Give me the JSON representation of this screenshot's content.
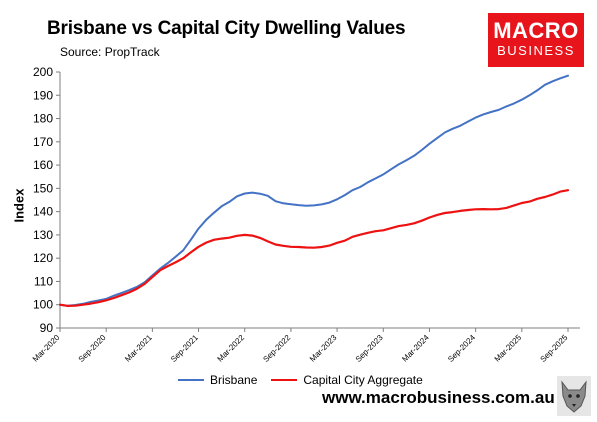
{
  "header": {
    "title": "Brisbane vs Capital City Dwelling Values",
    "source": "Source: PropTrack"
  },
  "logo": {
    "line1": "MACRO",
    "line2": "BUSINESS",
    "color": "#e8141b"
  },
  "footer": {
    "website": "www.macrobusiness.com.au"
  },
  "chart_data": {
    "type": "line",
    "title": "Brisbane vs Capital City Dwelling Values",
    "xlabel": "",
    "ylabel": "Index",
    "ylim": [
      90,
      200
    ],
    "yticks": [
      90,
      100,
      110,
      120,
      130,
      140,
      150,
      160,
      170,
      180,
      190,
      200
    ],
    "xtick_labels": [
      "Mar-2020",
      "Sep-2020",
      "Mar-2021",
      "Sep-2021",
      "Mar-2022",
      "Sep-2022",
      "Mar-2023",
      "Sep-2023",
      "Mar-2024",
      "Sep-2024",
      "Mar-2025",
      "Sep-2025"
    ],
    "x": [
      "Mar-2020",
      "Apr-2020",
      "May-2020",
      "Jun-2020",
      "Jul-2020",
      "Aug-2020",
      "Sep-2020",
      "Oct-2020",
      "Nov-2020",
      "Dec-2020",
      "Jan-2021",
      "Feb-2021",
      "Mar-2021",
      "Apr-2021",
      "May-2021",
      "Jun-2021",
      "Jul-2021",
      "Aug-2021",
      "Sep-2021",
      "Oct-2021",
      "Nov-2021",
      "Dec-2021",
      "Jan-2022",
      "Feb-2022",
      "Mar-2022",
      "Apr-2022",
      "May-2022",
      "Jun-2022",
      "Jul-2022",
      "Aug-2022",
      "Sep-2022",
      "Oct-2022",
      "Nov-2022",
      "Dec-2022",
      "Jan-2023",
      "Feb-2023",
      "Mar-2023",
      "Apr-2023",
      "May-2023",
      "Jun-2023",
      "Jul-2023",
      "Aug-2023",
      "Sep-2023",
      "Oct-2023",
      "Nov-2023",
      "Dec-2023",
      "Jan-2024",
      "Feb-2024",
      "Mar-2024",
      "Apr-2024",
      "May-2024",
      "Jun-2024",
      "Jul-2024",
      "Aug-2024",
      "Sep-2024",
      "Oct-2024",
      "Nov-2024",
      "Dec-2024",
      "Jan-2025",
      "Feb-2025",
      "Mar-2025",
      "Apr-2025",
      "May-2025",
      "Jun-2025",
      "Jul-2025",
      "Aug-2025",
      "Sep-2025"
    ],
    "series": [
      {
        "name": "Brisbane",
        "color": "#4472c4",
        "values": [
          100,
          99.6,
          99.9,
          100.4,
          101.2,
          101.8,
          102.5,
          103.9,
          105.1,
          106.3,
          107.7,
          109.7,
          112.6,
          115.5,
          117.9,
          120.6,
          123.4,
          127.9,
          132.7,
          136.5,
          139.5,
          142.3,
          144.2,
          146.6,
          147.8,
          148.2,
          147.7,
          146.8,
          144.5,
          143.6,
          143.2,
          142.8,
          142.5,
          142.7,
          143.1,
          143.9,
          145.3,
          147.1,
          149.2,
          150.6,
          152.6,
          154.3,
          156.0,
          158.2,
          160.3,
          162.1,
          164.0,
          166.5,
          169.2,
          171.6,
          174.0,
          175.6,
          176.9,
          178.7,
          180.4,
          181.8,
          182.8,
          183.7,
          185.2,
          186.5,
          188.1,
          190.0,
          192.1,
          194.5,
          196.0,
          197.3,
          198.4
        ]
      },
      {
        "name": "Capital City Aggregate",
        "color": "#ee1111",
        "values": [
          100,
          99.5,
          99.6,
          100.0,
          100.5,
          101.1,
          101.9,
          102.9,
          104.1,
          105.3,
          106.9,
          109.0,
          111.9,
          114.8,
          116.6,
          118.2,
          120.0,
          122.5,
          124.9,
          126.7,
          127.9,
          128.4,
          128.8,
          129.6,
          130.0,
          129.7,
          128.7,
          127.2,
          125.9,
          125.3,
          124.9,
          124.8,
          124.6,
          124.5,
          124.8,
          125.4,
          126.6,
          127.5,
          129.2,
          130.1,
          130.9,
          131.6,
          132.0,
          132.9,
          133.8,
          134.3,
          135.0,
          136.1,
          137.5,
          138.6,
          139.4,
          139.8,
          140.3,
          140.7,
          141.0,
          141.1,
          141.0,
          141.1,
          141.6,
          142.7,
          143.7,
          144.3,
          145.5,
          146.3,
          147.3,
          148.6,
          149.2
        ]
      }
    ],
    "grid": false,
    "legend_position": "bottom"
  }
}
